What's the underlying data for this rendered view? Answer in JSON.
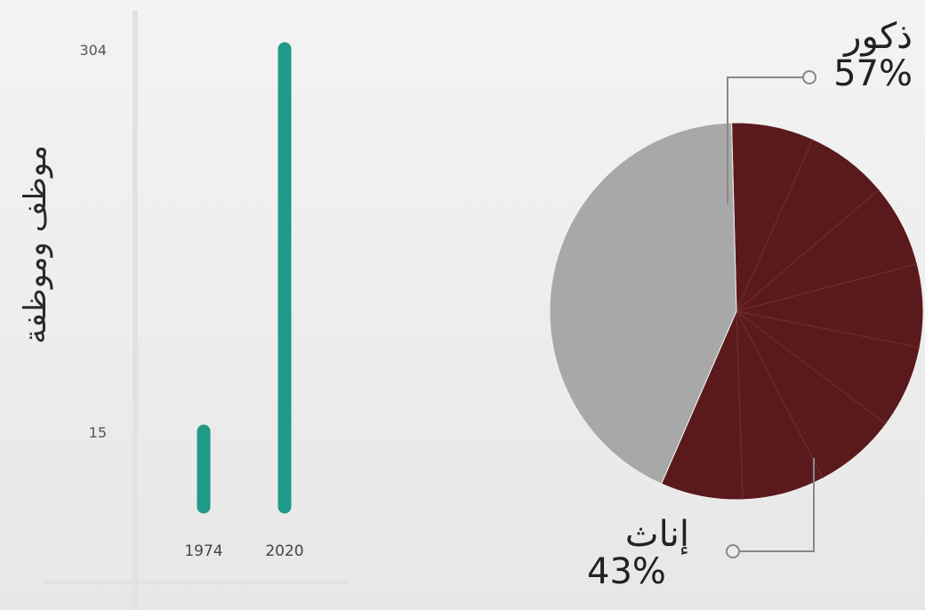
{
  "chart_data": [
    {
      "type": "bar",
      "ylabel": "موظف وموظفة",
      "categories": [
        "1974",
        "2020"
      ],
      "values": [
        15,
        304
      ],
      "data_labels": [
        "15",
        "304"
      ],
      "colors": {
        "bar": "#1e9a87"
      },
      "grid": false
    },
    {
      "type": "pie",
      "slices": [
        {
          "label": "ذكور",
          "value": 57,
          "display": "57%",
          "color": "#5a1a1c"
        },
        {
          "label": "إناث",
          "value": 43,
          "display": "43%",
          "color": "#a8a8a8"
        }
      ]
    }
  ]
}
